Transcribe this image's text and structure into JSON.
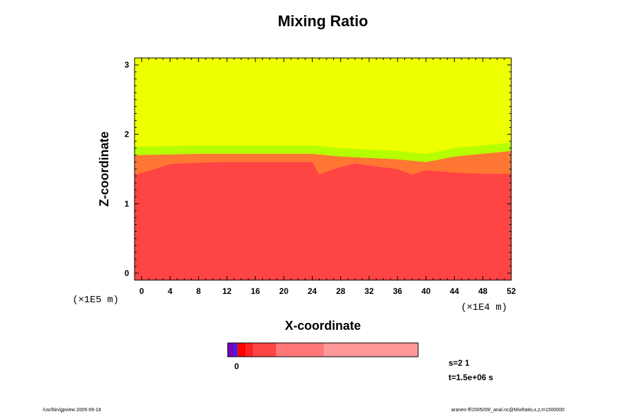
{
  "chart_data": {
    "type": "heatmap",
    "title": "Mixing Ratio",
    "xlabel": "X-coordinate",
    "ylabel": "Z-coordinate",
    "x_unit": "(×1E4 m)",
    "y_unit": "(×1E5 m)",
    "xlim": [
      -1,
      52
    ],
    "ylim": [
      -0.1,
      3.1
    ],
    "x_ticks": [
      0,
      4,
      8,
      12,
      16,
      20,
      24,
      28,
      32,
      36,
      40,
      44,
      48,
      52
    ],
    "y_ticks": [
      0,
      1,
      2,
      3
    ],
    "field": {
      "upper_color": "#eeff00",
      "lower_color": "#ff4444",
      "transition_color": "#ff7733",
      "highlight_color": "#88ff00",
      "interface_z": [
        [
          -1,
          1.42
        ],
        [
          0,
          1.44
        ],
        [
          4,
          1.57
        ],
        [
          8,
          1.59
        ],
        [
          12,
          1.6
        ],
        [
          16,
          1.6
        ],
        [
          20,
          1.6
        ],
        [
          24,
          1.6
        ],
        [
          25,
          1.42
        ],
        [
          27,
          1.5
        ],
        [
          30,
          1.58
        ],
        [
          32,
          1.55
        ],
        [
          36,
          1.5
        ],
        [
          38,
          1.42
        ],
        [
          40,
          1.48
        ],
        [
          44,
          1.45
        ],
        [
          48,
          1.43
        ],
        [
          52,
          1.43
        ]
      ],
      "upper_edge_z": [
        [
          -1,
          1.7
        ],
        [
          8,
          1.72
        ],
        [
          16,
          1.72
        ],
        [
          24,
          1.72
        ],
        [
          28,
          1.68
        ],
        [
          32,
          1.66
        ],
        [
          36,
          1.64
        ],
        [
          40,
          1.6
        ],
        [
          44,
          1.68
        ],
        [
          48,
          1.72
        ],
        [
          52,
          1.76
        ]
      ]
    },
    "colorbar": {
      "tick_label": "0",
      "colors": [
        "#7700bb",
        "#2222ff",
        "#ff0000",
        "#ff2222",
        "#ff4444",
        "#ff7777",
        "#ff8888",
        "#ff9999"
      ],
      "widths": [
        0.035,
        0.015,
        0.045,
        0.04,
        0.12,
        0.25,
        0.0,
        0.495
      ]
    },
    "info_lines": [
      "s=2 1",
      "t=1.5e+06 s"
    ]
  },
  "footer": {
    "left": "/usr/bin/gpview 2005-09-18",
    "right": "araneo-ff/2005/09/_anal.nc@MixRatio,x,z,t=1500000"
  }
}
